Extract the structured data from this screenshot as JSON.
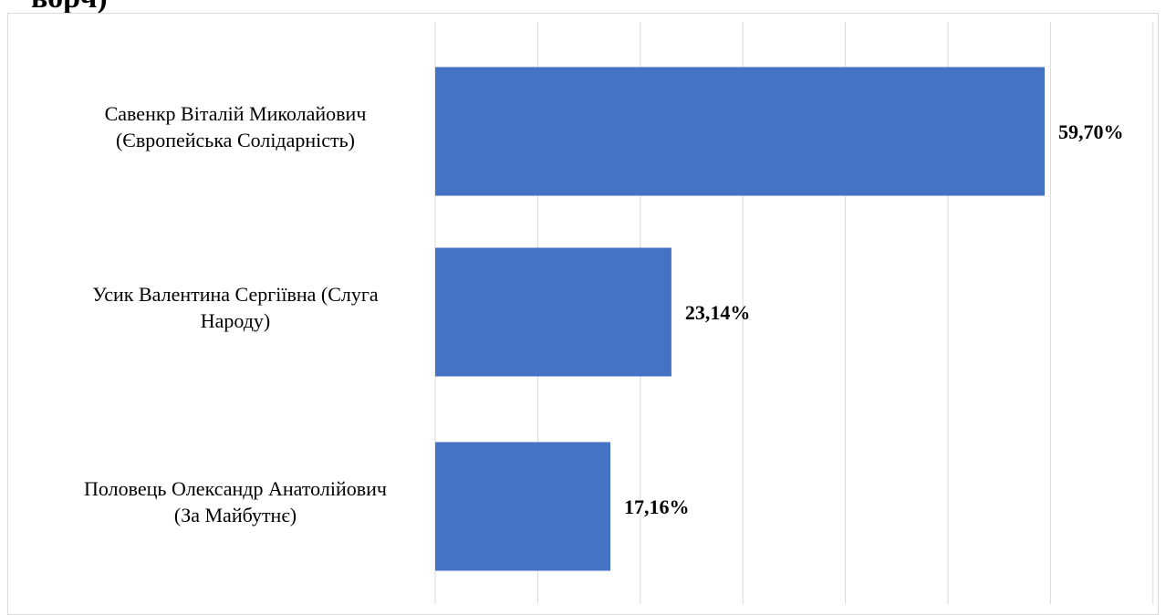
{
  "page_heading": "ворч)",
  "chart_data": {
    "type": "bar",
    "orientation": "horizontal",
    "title": "",
    "xlabel": "",
    "ylabel": "",
    "categories": [
      [
        "Савенкр Віталій Миколайович",
        "(Європейська Солідарність)"
      ],
      [
        "Усик Валентина Сергіївна (Слуга",
        "Народу)"
      ],
      [
        "Половець Олександр Анатолійович",
        "(За Майбутнє)"
      ]
    ],
    "values": [
      59.7,
      23.14,
      17.16
    ],
    "data_labels": [
      "59,70%",
      "23,14%",
      "17,16%"
    ],
    "unit": "%",
    "xlim": [
      0,
      60
    ],
    "gridlines": true,
    "x_tick_labels_shown": false,
    "legend": "none",
    "bar_color": "#4472c4",
    "gridline_color": "#d9d9d9"
  }
}
